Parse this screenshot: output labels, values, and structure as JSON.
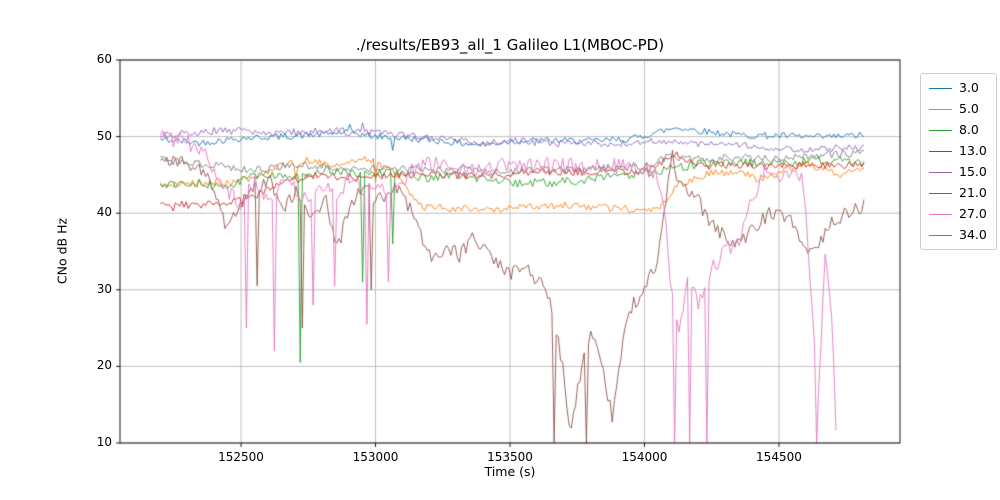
{
  "chart_data": {
    "type": "line",
    "title": "./results/EB93_all_1 Galileo L1(MBOC-PD)",
    "xlabel": "Time (s)",
    "ylabel": "CNo dB Hz",
    "xlim": [
      152050,
      154950
    ],
    "ylim": [
      10,
      60
    ],
    "xticks": [
      152500,
      153000,
      153500,
      154000,
      154500
    ],
    "yticks": [
      10,
      20,
      30,
      40,
      50,
      60
    ],
    "grid": true,
    "legend_position": "outside-right",
    "sample_step_s": 8,
    "series": [
      {
        "name": "3.0",
        "color": "#1f77b4",
        "noise": 0.45,
        "anchors": [
          [
            152200,
            49.6
          ],
          [
            152350,
            49.2
          ],
          [
            152500,
            49.8
          ],
          [
            152650,
            50.0
          ],
          [
            152800,
            50.3
          ],
          [
            152900,
            50.6
          ],
          [
            153000,
            50.0
          ],
          [
            153100,
            49.8
          ],
          [
            153250,
            49.4
          ],
          [
            153400,
            48.9
          ],
          [
            153500,
            49.4
          ],
          [
            153650,
            49.5
          ],
          [
            153800,
            49.4
          ],
          [
            153950,
            49.7
          ],
          [
            154050,
            50.6
          ],
          [
            154120,
            51.2
          ],
          [
            154200,
            50.8
          ],
          [
            154350,
            50.2
          ],
          [
            154500,
            50.1
          ],
          [
            154650,
            49.9
          ],
          [
            154820,
            50.2
          ]
        ],
        "spikes": [
          [
            152900,
            51.6
          ],
          [
            153060,
            48.2
          ]
        ]
      },
      {
        "name": "5.0",
        "color": "#ff7f0e",
        "noise": 0.5,
        "anchors": [
          [
            152200,
            43.6
          ],
          [
            152350,
            43.9
          ],
          [
            152500,
            44.2
          ],
          [
            152620,
            45.8
          ],
          [
            152750,
            47.0
          ],
          [
            152850,
            46.2
          ],
          [
            152950,
            47.2
          ],
          [
            153050,
            46.0
          ],
          [
            153120,
            43.0
          ],
          [
            153180,
            40.8
          ],
          [
            153300,
            40.6
          ],
          [
            153450,
            40.4
          ],
          [
            153600,
            40.9
          ],
          [
            153750,
            41.0
          ],
          [
            153900,
            40.6
          ],
          [
            154000,
            40.4
          ],
          [
            154060,
            40.9
          ],
          [
            154130,
            43.8
          ],
          [
            154250,
            45.2
          ],
          [
            154350,
            45.6
          ],
          [
            154430,
            44.2
          ],
          [
            154520,
            45.6
          ],
          [
            154620,
            46.4
          ],
          [
            154720,
            44.9
          ],
          [
            154820,
            46.1
          ]
        ],
        "spikes": [
          [
            152700,
            44.5
          ],
          [
            153000,
            44.0
          ]
        ]
      },
      {
        "name": "8.0",
        "color": "#2ca02c",
        "noise": 0.6,
        "anchors": [
          [
            152200,
            43.4
          ],
          [
            152320,
            43.9
          ],
          [
            152450,
            43.5
          ],
          [
            152570,
            45.1
          ],
          [
            152700,
            44.6
          ],
          [
            152820,
            45.6
          ],
          [
            152950,
            45.0
          ],
          [
            153070,
            45.4
          ],
          [
            153200,
            44.6
          ],
          [
            153330,
            45.1
          ],
          [
            153450,
            44.0
          ],
          [
            153570,
            43.9
          ],
          [
            153700,
            44.1
          ],
          [
            153830,
            44.6
          ],
          [
            153950,
            44.9
          ],
          [
            154070,
            45.6
          ],
          [
            154200,
            46.4
          ],
          [
            154350,
            46.6
          ],
          [
            154500,
            46.5
          ],
          [
            154650,
            46.9
          ],
          [
            154820,
            46.5
          ]
        ],
        "spikes": [
          [
            152720,
            20.5
          ],
          [
            152950,
            31.0
          ],
          [
            153060,
            36.0
          ]
        ]
      },
      {
        "name": "13.0",
        "color": "#d62728",
        "noise": 0.5,
        "anchors": [
          [
            152200,
            41.2
          ],
          [
            152330,
            41.0
          ],
          [
            152460,
            41.5
          ],
          [
            152560,
            42.5
          ],
          [
            152680,
            44.3
          ],
          [
            152800,
            45.0
          ],
          [
            152930,
            44.6
          ],
          [
            153060,
            44.9
          ],
          [
            153200,
            45.2
          ],
          [
            153330,
            44.8
          ],
          [
            153460,
            45.1
          ],
          [
            153600,
            45.4
          ],
          [
            153730,
            45.3
          ],
          [
            153860,
            45.6
          ],
          [
            154000,
            45.5
          ],
          [
            154080,
            46.8
          ],
          [
            154120,
            47.9
          ],
          [
            154200,
            46.1
          ],
          [
            154330,
            46.3
          ],
          [
            154460,
            46.1
          ],
          [
            154600,
            46.4
          ],
          [
            154720,
            46.2
          ],
          [
            154820,
            46.3
          ]
        ],
        "spikes": [
          [
            152250,
            40.3
          ],
          [
            152500,
            40.8
          ]
        ]
      },
      {
        "name": "15.0",
        "color": "#9467bd",
        "noise": 0.5,
        "anchors": [
          [
            152200,
            50.1
          ],
          [
            152330,
            50.6
          ],
          [
            152460,
            50.8
          ],
          [
            152600,
            50.4
          ],
          [
            152730,
            50.6
          ],
          [
            152860,
            50.7
          ],
          [
            153000,
            50.4
          ],
          [
            153130,
            50.0
          ],
          [
            153260,
            49.7
          ],
          [
            153400,
            49.1
          ],
          [
            153530,
            49.5
          ],
          [
            153660,
            49.1
          ],
          [
            153800,
            49.2
          ],
          [
            153930,
            49.0
          ],
          [
            154060,
            49.4
          ],
          [
            154200,
            49.1
          ],
          [
            154330,
            48.8
          ],
          [
            154460,
            48.6
          ],
          [
            154600,
            48.4
          ],
          [
            154720,
            48.5
          ],
          [
            154820,
            48.5
          ]
        ],
        "spikes": [
          [
            152950,
            51.8
          ]
        ]
      },
      {
        "name": "21.0",
        "color": "#8c564b",
        "noise": 1.0,
        "anchors": [
          [
            152200,
            47.2
          ],
          [
            152300,
            46.8
          ],
          [
            152380,
            44.5
          ],
          [
            152440,
            38.5
          ],
          [
            152500,
            41.5
          ],
          [
            152550,
            43.5
          ],
          [
            152610,
            44.0
          ],
          [
            152660,
            40.5
          ],
          [
            152710,
            43.0
          ],
          [
            152760,
            38.5
          ],
          [
            152810,
            42.5
          ],
          [
            152860,
            35.5
          ],
          [
            152910,
            41.5
          ],
          [
            152960,
            43.5
          ],
          [
            153010,
            41.5
          ],
          [
            153060,
            43.5
          ],
          [
            153110,
            42.0
          ],
          [
            153160,
            37.5
          ],
          [
            153210,
            34.0
          ],
          [
            153260,
            35.5
          ],
          [
            153310,
            34.5
          ],
          [
            153360,
            36.5
          ],
          [
            153410,
            35.0
          ],
          [
            153460,
            33.5
          ],
          [
            153510,
            32.0
          ],
          [
            153560,
            33.0
          ],
          [
            153610,
            31.0
          ],
          [
            153660,
            27.0
          ],
          [
            153700,
            19.0
          ],
          [
            153725,
            11.5
          ],
          [
            153755,
            18.0
          ],
          [
            153800,
            24.5
          ],
          [
            153845,
            20.0
          ],
          [
            153880,
            13.5
          ],
          [
            153910,
            21.5
          ],
          [
            153950,
            27.5
          ],
          [
            154000,
            30.5
          ],
          [
            154050,
            33.5
          ],
          [
            154095,
            45.8
          ],
          [
            154150,
            43.5
          ],
          [
            154200,
            41.5
          ],
          [
            154250,
            38.5
          ],
          [
            154300,
            37.0
          ],
          [
            154350,
            36.2
          ],
          [
            154400,
            38.0
          ],
          [
            154450,
            39.5
          ],
          [
            154500,
            40.5
          ],
          [
            154550,
            38.5
          ],
          [
            154600,
            34.8
          ],
          [
            154650,
            36.0
          ],
          [
            154700,
            38.8
          ],
          [
            154750,
            40.3
          ],
          [
            154820,
            41.0
          ]
        ],
        "spikes": [
          [
            152560,
            30.5
          ],
          [
            152725,
            25.0
          ],
          [
            152985,
            30.0
          ],
          [
            153665,
            10.0
          ],
          [
            153785,
            10.0
          ],
          [
            154105,
            48.2
          ]
        ]
      },
      {
        "name": "27.0",
        "color": "#e377c2",
        "noise": 1.1,
        "anchors": [
          [
            152200,
            49.8
          ],
          [
            152300,
            49.4
          ],
          [
            152380,
            47.0
          ],
          [
            152440,
            43.0
          ],
          [
            152500,
            41.5
          ],
          [
            152550,
            44.0
          ],
          [
            152610,
            42.0
          ],
          [
            152660,
            45.0
          ],
          [
            152710,
            43.0
          ],
          [
            152760,
            41.0
          ],
          [
            152810,
            44.0
          ],
          [
            152860,
            42.5
          ],
          [
            152910,
            45.0
          ],
          [
            152960,
            43.0
          ],
          [
            153010,
            44.5
          ],
          [
            153060,
            42.0
          ],
          [
            153110,
            44.5
          ],
          [
            153170,
            46.5
          ],
          [
            153270,
            46.0
          ],
          [
            153370,
            45.6
          ],
          [
            153470,
            46.4
          ],
          [
            153570,
            46.0
          ],
          [
            153670,
            46.3
          ],
          [
            153770,
            46.0
          ],
          [
            153870,
            46.2
          ],
          [
            153970,
            46.0
          ],
          [
            154040,
            45.5
          ],
          [
            154075,
            40.0
          ],
          [
            154100,
            30.0
          ],
          [
            154130,
            25.0
          ],
          [
            154160,
            32.0
          ],
          [
            154200,
            28.0
          ],
          [
            154250,
            32.5
          ],
          [
            154300,
            35.0
          ],
          [
            154350,
            36.5
          ],
          [
            154400,
            42.0
          ],
          [
            154450,
            45.5
          ],
          [
            154500,
            45.0
          ],
          [
            154550,
            45.3
          ],
          [
            154590,
            44.0
          ],
          [
            154615,
            32.0
          ],
          [
            154645,
            15.0
          ],
          [
            154672,
            34.0
          ],
          [
            154695,
            28.0
          ],
          [
            154715,
            10.0
          ]
        ],
        "spikes": [
          [
            152520,
            25.0
          ],
          [
            152625,
            22.0
          ],
          [
            152765,
            28.0
          ],
          [
            152845,
            30.5
          ],
          [
            152965,
            25.5
          ],
          [
            153045,
            31.0
          ],
          [
            154110,
            10.0
          ],
          [
            154170,
            10.0
          ],
          [
            154235,
            10.0
          ],
          [
            154640,
            10.0
          ]
        ]
      },
      {
        "name": "34.0",
        "color": "#7f7f7f",
        "noise": 0.5,
        "anchors": [
          [
            152200,
            46.9
          ],
          [
            152330,
            46.5
          ],
          [
            152460,
            46.0
          ],
          [
            152560,
            45.6
          ],
          [
            152680,
            46.4
          ],
          [
            152800,
            46.1
          ],
          [
            152930,
            45.8
          ],
          [
            153060,
            46.0
          ],
          [
            153200,
            45.6
          ],
          [
            153330,
            45.7
          ],
          [
            153460,
            45.4
          ],
          [
            153600,
            45.6
          ],
          [
            153730,
            45.7
          ],
          [
            153860,
            45.9
          ],
          [
            154000,
            46.0
          ],
          [
            154090,
            47.4
          ],
          [
            154200,
            47.1
          ],
          [
            154330,
            47.3
          ],
          [
            154460,
            47.1
          ],
          [
            154600,
            47.4
          ],
          [
            154720,
            47.7
          ],
          [
            154820,
            48.0
          ]
        ],
        "spikes": []
      }
    ]
  }
}
